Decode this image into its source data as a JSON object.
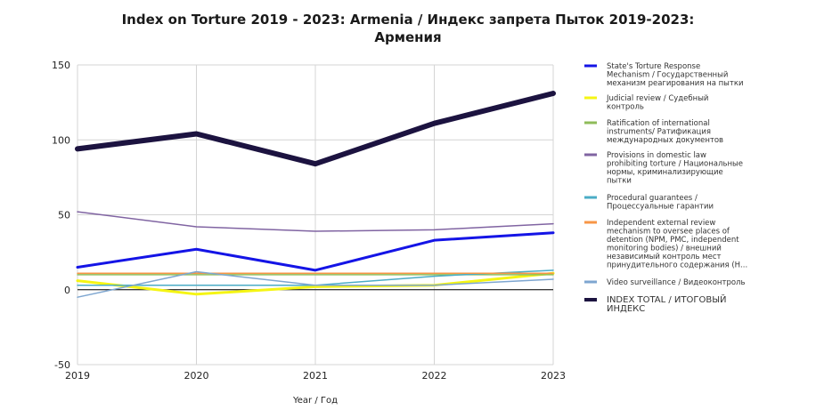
{
  "chart_data": {
    "type": "line",
    "title_line1": "Index on Torture 2019 - 2023: Armenia / Индекс запрета Пыток 2019-2023:",
    "title_line2": "Армения",
    "xlabel": "Year / Год",
    "ylabel": "",
    "x": [
      "2019",
      "2020",
      "2021",
      "2022",
      "2023"
    ],
    "ylim": [
      -50,
      150
    ],
    "yticks": [
      -50,
      0,
      50,
      100,
      150
    ],
    "grid": true,
    "legend_position": "right",
    "series": [
      {
        "name_lines": [
          "State's Torture Response",
          "Mechanism / Государственный",
          "механизм реагирования на пытки"
        ],
        "color": "#1414e6",
        "width": 3,
        "values": [
          15,
          27,
          13,
          33,
          38
        ]
      },
      {
        "name_lines": [
          "Judicial review / Судебный",
          "контроль"
        ],
        "color": "#f5f514",
        "width": 3,
        "values": [
          6,
          -3,
          2,
          3,
          11
        ]
      },
      {
        "name_lines": [
          "Ratification of international",
          "instruments/ Ратификация",
          "международных документов"
        ],
        "color": "#8fbc5a",
        "width": 1.5,
        "values": [
          10,
          10,
          10,
          10,
          10
        ]
      },
      {
        "name_lines": [
          "Provisions in domestic law",
          "prohibiting torture / Национальные",
          "нормы, криминализирующие",
          "пытки"
        ],
        "color": "#8064a2",
        "width": 1.5,
        "values": [
          52,
          42,
          39,
          40,
          44
        ]
      },
      {
        "name_lines": [
          "Procedural guarantees /",
          "Процессуальные гарантии"
        ],
        "color": "#4bacc6",
        "width": 1.5,
        "values": [
          3,
          3,
          3,
          9,
          13
        ]
      },
      {
        "name_lines": [
          "Independent external review",
          "mechanism to oversee places of",
          "detention (NPM, PMC, independent",
          "monitoring bodies) / внешний",
          "независимый контроль мест",
          "принудительного содержания (Н..."
        ],
        "color": "#f79646",
        "width": 1.5,
        "values": [
          11,
          11,
          11,
          11,
          11
        ]
      },
      {
        "name_lines": [
          "Video surveillance / Видеоконтроль"
        ],
        "color": "#7ea6d0",
        "width": 1.5,
        "values": [
          -5,
          12,
          3,
          3,
          7
        ]
      },
      {
        "name_lines": [
          "INDEX TOTAL /  ИТОГОВЫЙ",
          "ИНДЕКС"
        ],
        "color": "#1c1340",
        "width": 6,
        "big": true,
        "values": [
          94,
          104,
          84,
          111,
          131
        ]
      }
    ]
  }
}
